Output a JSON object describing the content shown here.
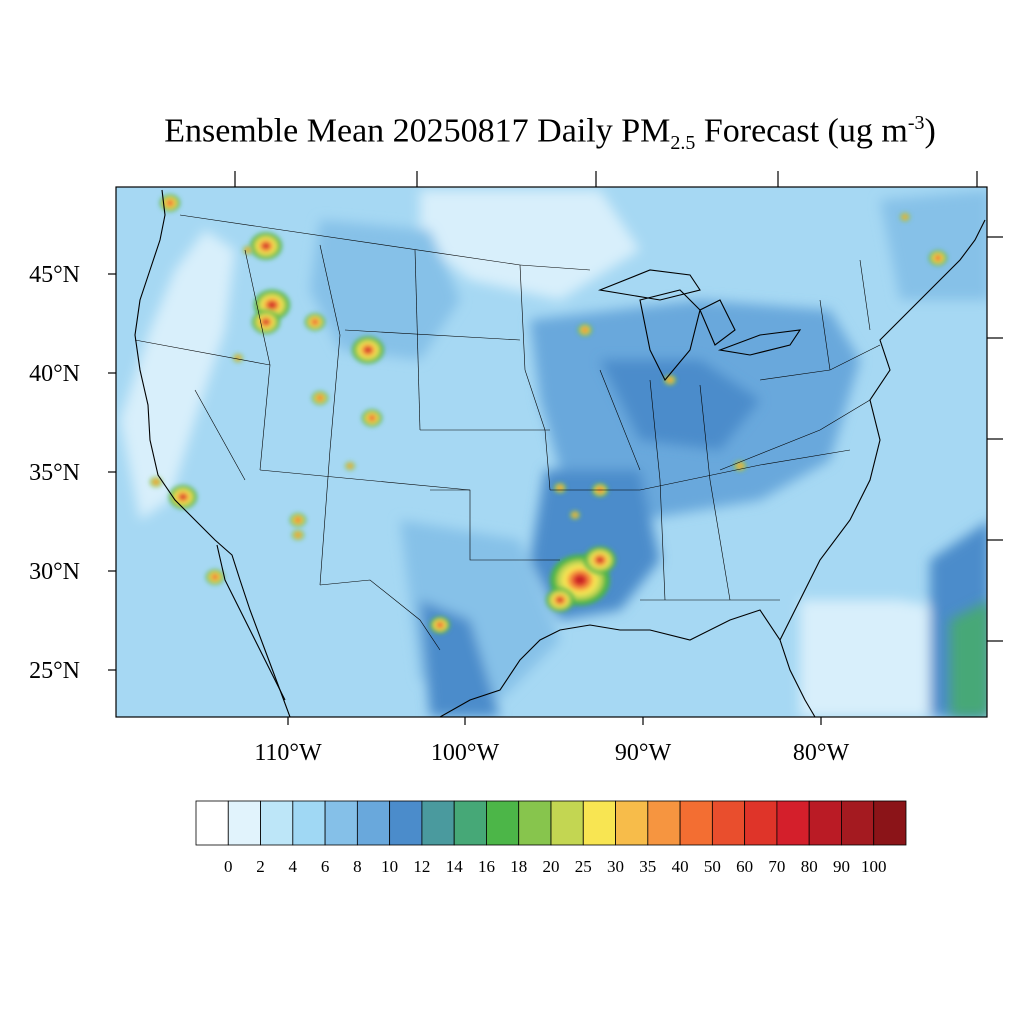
{
  "title": {
    "prefix": "Ensemble Mean 20250817 Daily PM",
    "subscript": "2.5",
    "middle": " Forecast (ug m",
    "superscript": "-3",
    "suffix": ")"
  },
  "latitude_labels": [
    "45°N",
    "40°N",
    "35°N",
    "30°N",
    "25°N"
  ],
  "longitude_labels": [
    "110°W",
    "100°W",
    "90°W",
    "80°W"
  ],
  "colorbar": {
    "labels": [
      "0",
      "2",
      "4",
      "6",
      "8",
      "10",
      "12",
      "14",
      "16",
      "18",
      "20",
      "25",
      "30",
      "35",
      "40",
      "50",
      "60",
      "70",
      "80",
      "90",
      "100"
    ],
    "colors": [
      "#ffffff",
      "#e1f3fc",
      "#bde6f8",
      "#a0d8f4",
      "#85c0e8",
      "#69a8dc",
      "#4b8ccb",
      "#4a9a9e",
      "#46a877",
      "#4cb648",
      "#87c54d",
      "#c3d652",
      "#f8e552",
      "#f7bc4a",
      "#f69540",
      "#f36e32",
      "#e94e2d",
      "#df3429",
      "#d41f2b",
      "#ba1b25",
      "#a41a20",
      "#8b1418"
    ]
  },
  "map": {
    "background_color": "#a6d8f3",
    "boundary_color": "#000000",
    "hotspot_colors": [
      "#4cb648",
      "#c3d652",
      "#f8e552",
      "#f69540",
      "#df3429",
      "#ba1b25"
    ]
  }
}
